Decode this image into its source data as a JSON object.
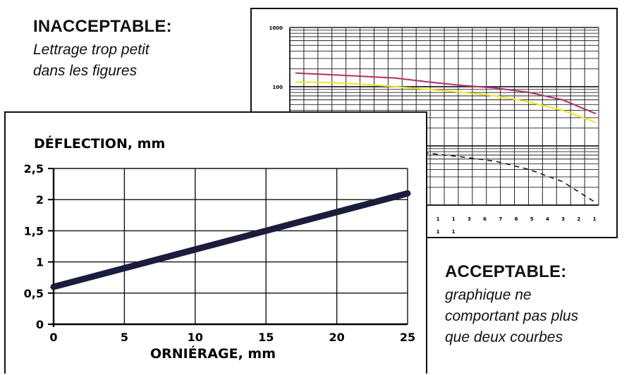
{
  "notes": {
    "unacceptable": {
      "title": "INACCEPTABLE:",
      "lines": [
        "Lettrage trop petit",
        "dans les figures"
      ]
    },
    "acceptable": {
      "title": "ACCEPTABLE:",
      "lines": [
        "graphique ne",
        "comportant pas plus",
        "que deux courbes"
      ]
    }
  },
  "chart_data": [
    {
      "type": "line",
      "title": "DÉFLECTION, mm",
      "xlabel": "ORNIÉRAGE, mm",
      "ylabel": "",
      "x": [
        0,
        25
      ],
      "series": [
        {
          "values": [
            0.6,
            2.1
          ],
          "color": "#1c1c3c"
        }
      ],
      "xlim": [
        0,
        25
      ],
      "ylim": [
        0,
        2.5
      ],
      "x_ticks": [
        "0",
        "5",
        "10",
        "15",
        "20",
        "25"
      ],
      "y_ticks": [
        "0",
        "0,5",
        "1",
        "1,5",
        "2",
        "2,5"
      ],
      "grid": true,
      "legend": "none"
    },
    {
      "type": "line",
      "yscale": "log",
      "ylim": [
        1,
        1000
      ],
      "y_ticks": [
        "1000",
        "100"
      ],
      "x_tick_labels": [
        "1",
        "1",
        "3",
        "6",
        "7",
        "6",
        "5",
        "4",
        "3",
        "2",
        "1"
      ],
      "x_tick_labels_row2": [
        "1",
        "1"
      ],
      "grid": true,
      "legend": "none",
      "series": [
        {
          "color": "#b0306a",
          "style": "solid",
          "values": [
            170,
            160,
            150,
            140,
            120,
            105,
            95,
            80,
            60,
            35
          ]
        },
        {
          "color": "#e8e820",
          "style": "solid",
          "values": [
            120,
            118,
            110,
            100,
            90,
            80,
            70,
            55,
            40,
            25
          ]
        },
        {
          "color": "#1a1a1a",
          "style": "dash",
          "values": [
            10,
            9,
            8.5,
            8,
            7.5,
            6.5,
            5.5,
            4,
            2.5,
            1.1
          ]
        }
      ]
    }
  ]
}
